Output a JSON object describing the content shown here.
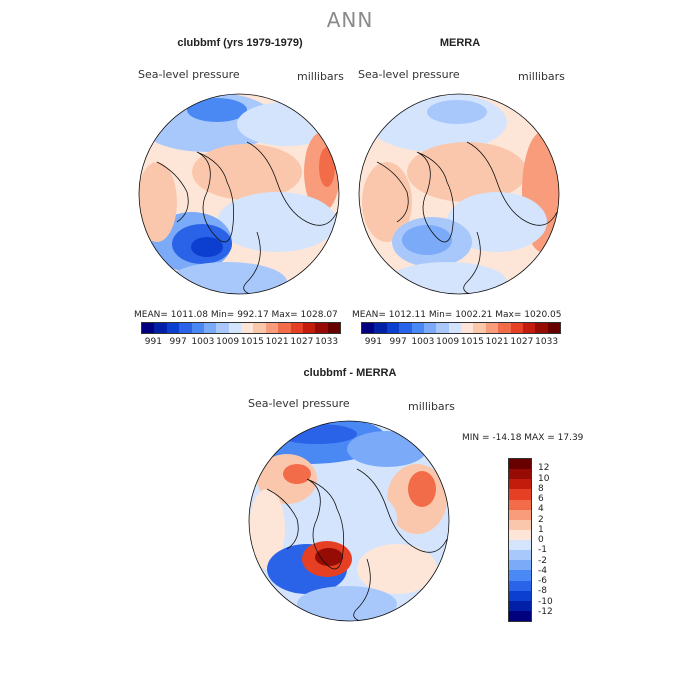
{
  "page": {
    "title": "ANN"
  },
  "panels": {
    "left": {
      "title": "clubbmf (yrs 1979-1979)",
      "variable": "Sea-level pressure",
      "units": "millibars",
      "stats": "MEAN= 1011.08   Min= 992.17   Max= 1028.07"
    },
    "right": {
      "title": "MERRA",
      "variable": "Sea-level pressure",
      "units": "millibars",
      "stats": "MEAN= 1012.11   Min= 1002.21   Max= 1020.05"
    },
    "diff": {
      "title": "clubbmf - MERRA",
      "variable": "Sea-level pressure",
      "units": "millibars",
      "stats": "MIN = -14.18  MAX =  17.39"
    }
  },
  "colorbars": {
    "abs": {
      "colors": [
        "#00007f",
        "#0020a8",
        "#0c3fd0",
        "#2a62e8",
        "#4a88f4",
        "#7aaaf8",
        "#a8c8fc",
        "#d4e4fc",
        "#fde6d8",
        "#fbc7ac",
        "#f89c7c",
        "#f26c4a",
        "#e64024",
        "#c41c0c",
        "#960c04",
        "#680000"
      ],
      "tick_labels": [
        "991",
        "997",
        "1003",
        "1009",
        "1015",
        "1021",
        "1027",
        "1033"
      ]
    },
    "diff": {
      "colors": [
        "#00007f",
        "#0020a8",
        "#0c3fd0",
        "#2a62e8",
        "#4a88f4",
        "#7aaaf8",
        "#a8c8fc",
        "#d4e4fc",
        "#fde6d8",
        "#fbc7ac",
        "#f89c7c",
        "#f26c4a",
        "#e64024",
        "#c41c0c",
        "#960c04",
        "#680000"
      ],
      "tick_labels": [
        "12",
        "10",
        "8",
        "6",
        "4",
        "2",
        "1",
        "0",
        "-1",
        "-2",
        "-4",
        "-6",
        "-8",
        "-10",
        "-12"
      ]
    }
  },
  "colors": {
    "land_outline": "#111111",
    "background": "#ffffff",
    "title_gray": "#8a8a8a"
  }
}
